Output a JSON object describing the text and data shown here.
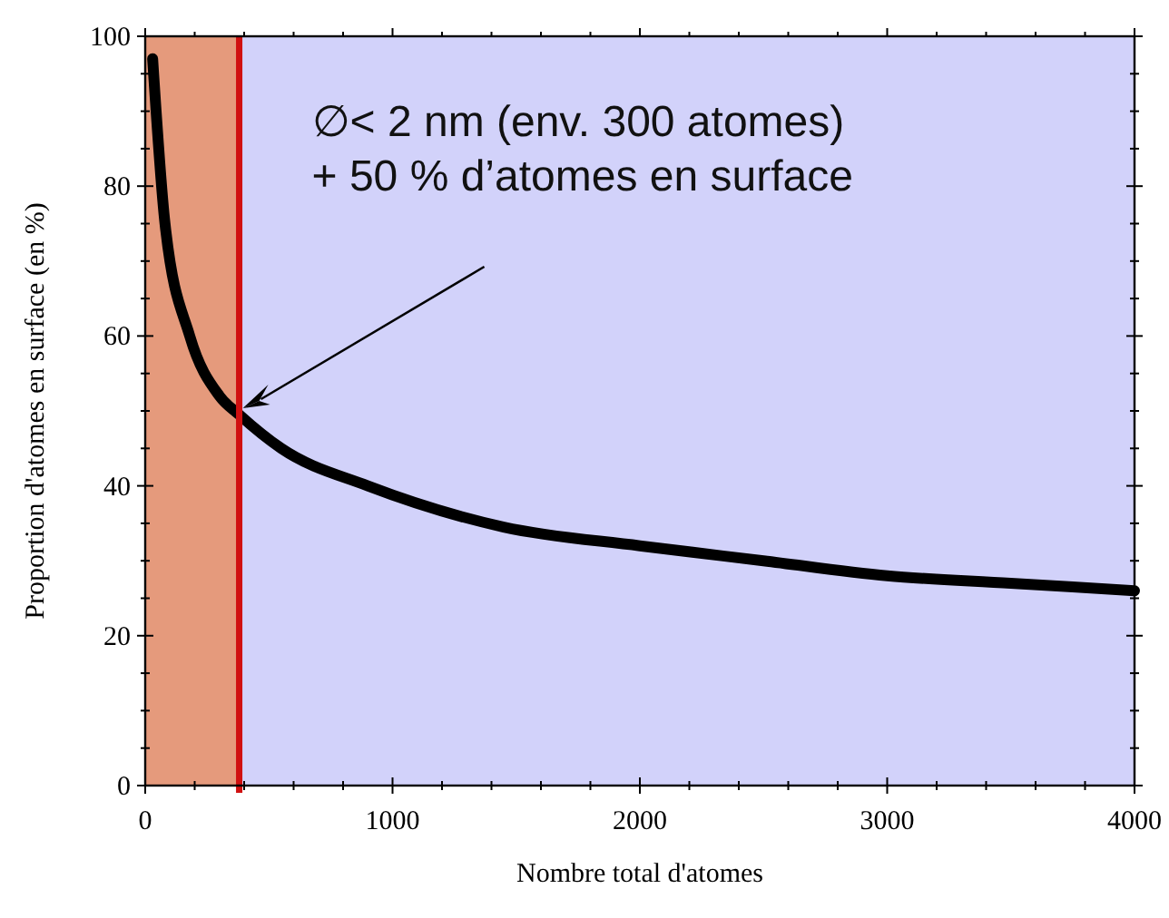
{
  "chart_data": {
    "type": "line",
    "xlabel": "Nombre total d'atomes",
    "ylabel": "Proportion d'atomes en surface (en %)",
    "x": [
      30,
      80,
      180,
      300,
      380,
      550,
      900,
      1450,
      2000,
      2500,
      3000,
      3500,
      4000
    ],
    "series": [
      {
        "color": "#000000",
        "values": [
          97,
          75,
          60,
          52,
          49.5,
          45,
          40,
          34.5,
          32,
          30,
          28,
          27,
          26
        ]
      }
    ],
    "xlim": [
      0,
      4000
    ],
    "ylim": [
      0,
      100
    ],
    "xticks": [
      0,
      {
        "value": 200,
        "label": null
      },
      {
        "value": 400,
        "label": null
      },
      {
        "value": 600,
        "label": null
      },
      {
        "value": 800,
        "label": null
      },
      1000,
      {
        "value": 1200,
        "label": null
      },
      {
        "value": 1400,
        "label": null
      },
      {
        "value": 1600,
        "label": null
      },
      {
        "value": 1800,
        "label": null
      },
      2000,
      {
        "value": 2200,
        "label": null
      },
      {
        "value": 2400,
        "label": null
      },
      {
        "value": 2600,
        "label": null
      },
      {
        "value": 2800,
        "label": null
      },
      3000,
      {
        "value": 3200,
        "label": null
      },
      {
        "value": 3400,
        "label": null
      },
      {
        "value": 3600,
        "label": null
      },
      {
        "value": 3800,
        "label": null
      },
      4000
    ],
    "yticks": [
      0,
      {
        "value": 5,
        "label": null
      },
      {
        "value": 10,
        "label": null
      },
      {
        "value": 15,
        "label": null
      },
      20,
      {
        "value": 25,
        "label": null
      },
      {
        "value": 30,
        "label": null
      },
      {
        "value": 35,
        "label": null
      },
      40,
      {
        "value": 45,
        "label": null
      },
      {
        "value": 50,
        "label": null
      },
      {
        "value": 55,
        "label": null
      },
      60,
      {
        "value": 65,
        "label": null
      },
      {
        "value": 70,
        "label": null
      },
      {
        "value": 75,
        "label": null
      },
      80,
      {
        "value": 85,
        "label": null
      },
      {
        "value": 90,
        "label": null
      },
      {
        "value": 95,
        "label": null
      },
      100
    ],
    "bands": [
      {
        "axis": "x",
        "from": 0,
        "to": 380,
        "color": "#e59a7c"
      },
      {
        "axis": "x",
        "from": 380,
        "to": 4000,
        "color": "#d2d2fa"
      }
    ],
    "ref_lines": [
      {
        "axis": "x",
        "value": 380,
        "color": "#d01010",
        "line_style": "solid"
      }
    ],
    "annotations": [
      "∅< 2 nm (env. 300 atomes)\n+ 50 % d’atomes en surface"
    ],
    "grid": false,
    "marker": "none",
    "line_style": "solid"
  }
}
